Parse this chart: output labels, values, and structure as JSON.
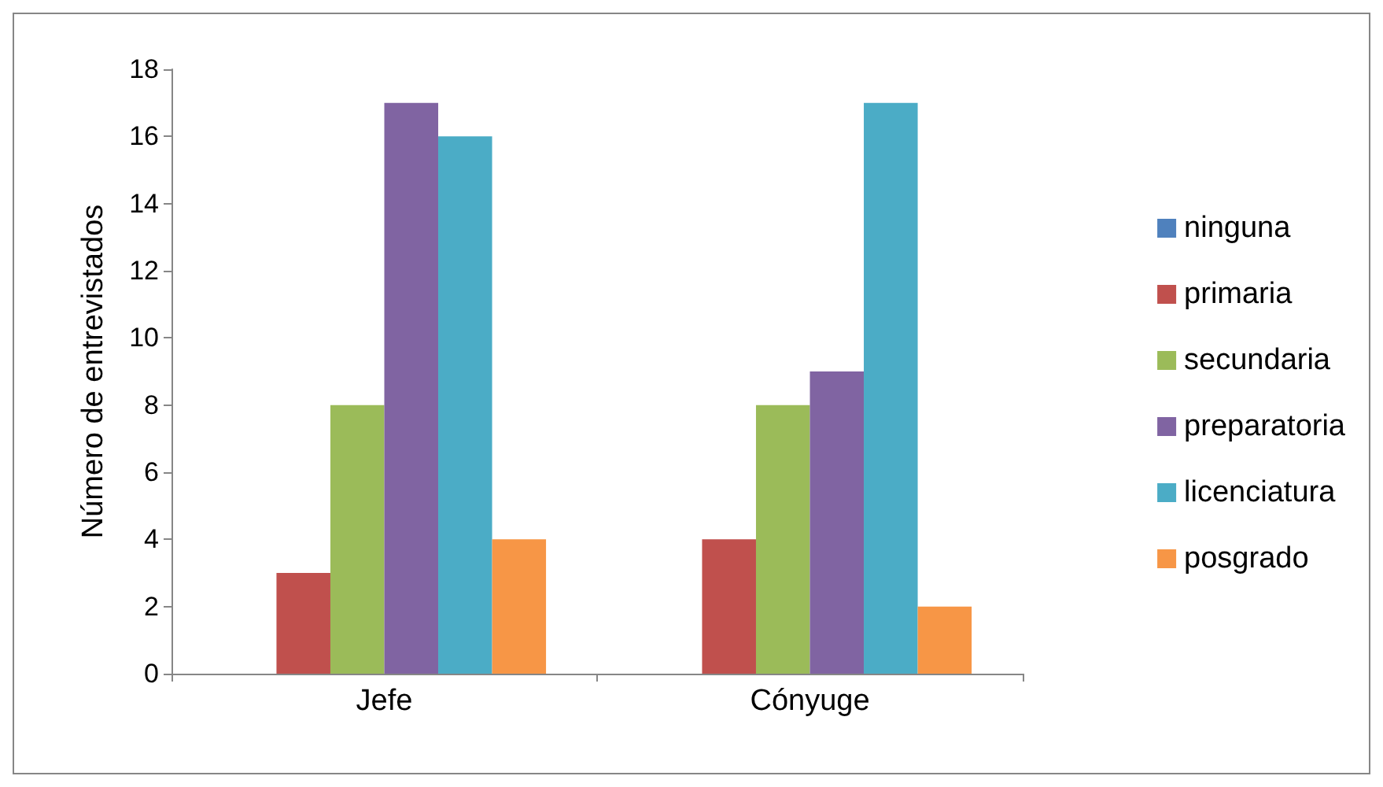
{
  "chart_data": {
    "type": "bar",
    "ylabel": "Número de entrevistados",
    "categories": [
      "Jefe",
      "Cónyuge"
    ],
    "series": [
      {
        "name": "ninguna",
        "color": "#4f81bd",
        "values": [
          0,
          0
        ]
      },
      {
        "name": "primaria",
        "color": "#c0504d",
        "values": [
          3,
          4
        ]
      },
      {
        "name": "secundaria",
        "color": "#9bbb59",
        "values": [
          8,
          8
        ]
      },
      {
        "name": "preparatoria",
        "color": "#8064a2",
        "values": [
          17,
          9
        ]
      },
      {
        "name": "licenciatura",
        "color": "#4bacc6",
        "values": [
          16,
          17
        ]
      },
      {
        "name": "posgrado",
        "color": "#f79646",
        "values": [
          4,
          2
        ]
      }
    ],
    "ylim": [
      0,
      18
    ],
    "yticks": [
      0,
      2,
      4,
      6,
      8,
      10,
      12,
      14,
      16,
      18
    ],
    "grid": false,
    "legend": "right"
  }
}
